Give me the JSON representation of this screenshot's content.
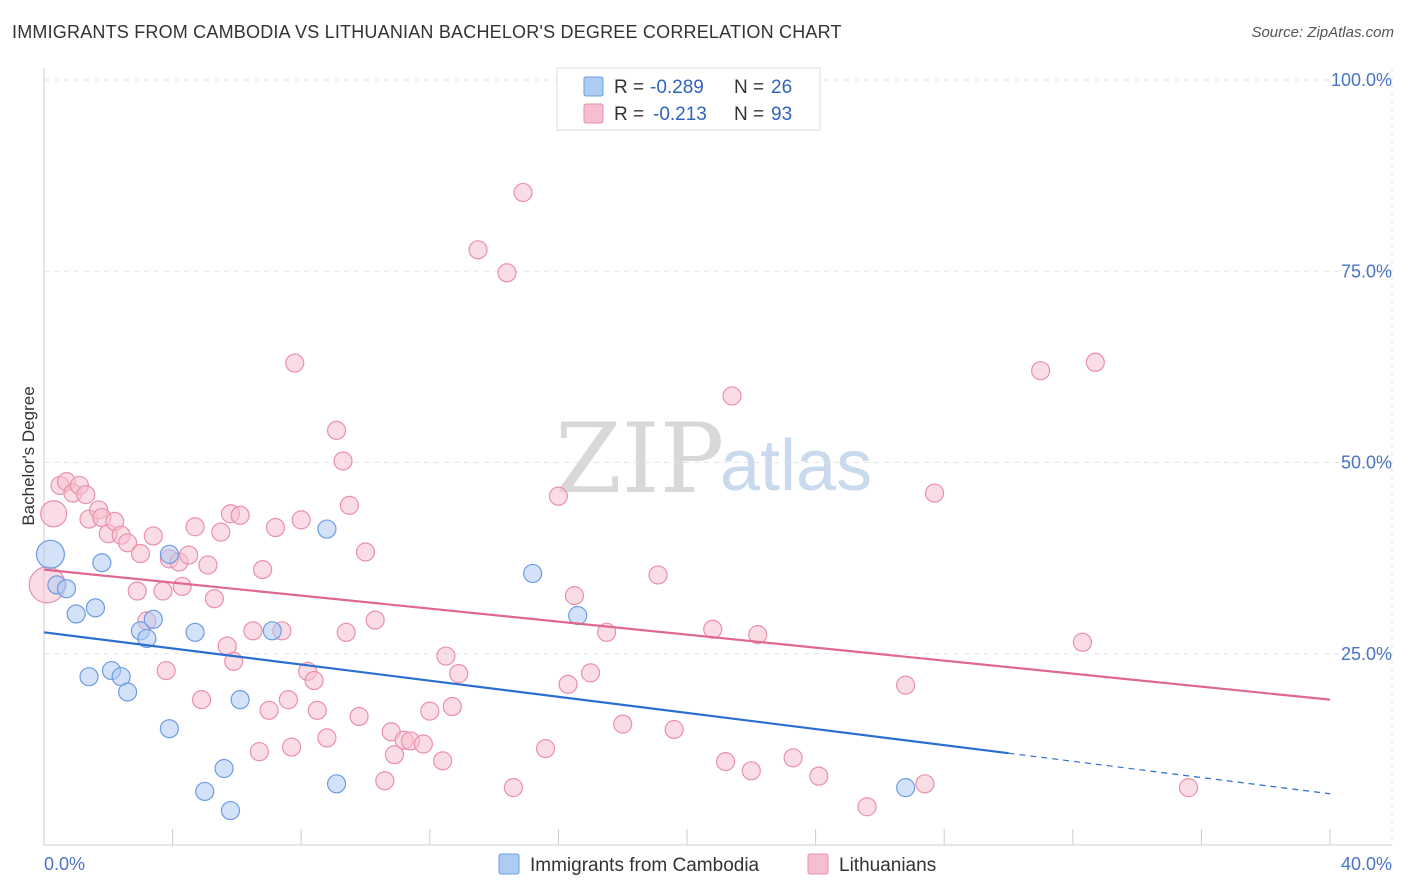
{
  "header": {
    "title": "IMMIGRANTS FROM CAMBODIA VS LITHUANIAN BACHELOR'S DEGREE CORRELATION CHART",
    "source": "Source: ZipAtlas.com"
  },
  "watermark": {
    "zip": "ZIP",
    "atlas": "atlas"
  },
  "legend_top": [
    {
      "r_label": "R = ",
      "r_value": "-0.289",
      "n_label": "N = ",
      "n_value": "26",
      "color": "#aecbf2"
    },
    {
      "r_label": "R = ",
      "r_value": "-0.213",
      "n_label": "N = ",
      "n_value": "93",
      "color": "#f6bfd0"
    }
  ],
  "chart_data": {
    "type": "scatter",
    "title": "IMMIGRANTS FROM CAMBODIA VS LITHUANIAN BACHELOR'S DEGREE CORRELATION CHART",
    "xlabel": "",
    "ylabel": "Bachelor's Degree",
    "xlim": [
      0,
      40
    ],
    "ylim": [
      0,
      100
    ],
    "x_tick_labels": [
      "0.0%",
      "40.0%"
    ],
    "y_ticks": [
      25,
      50,
      75,
      100
    ],
    "y_tick_labels": [
      "25.0%",
      "50.0%",
      "75.0%",
      "100.0%"
    ],
    "grid": true,
    "legend_placement": "bottom-center",
    "series": [
      {
        "name": "Immigrants from Cambodia",
        "color": "#aecbf2",
        "stroke": "#6d9ce0",
        "line_color": "#2a6fd0",
        "trend": {
          "x": [
            0,
            30,
            40
          ],
          "y": [
            27.8,
            12.0,
            6.7
          ],
          "solid_until": 30
        },
        "points": [
          [
            0.2,
            38.0,
            14
          ],
          [
            0.4,
            34.0,
            9
          ],
          [
            0.7,
            33.5,
            9
          ],
          [
            1.0,
            30.2,
            9
          ],
          [
            1.6,
            31.0,
            9
          ],
          [
            1.8,
            36.9,
            9
          ],
          [
            1.4,
            22.0,
            9
          ],
          [
            2.1,
            22.8,
            9
          ],
          [
            2.4,
            22.0,
            9
          ],
          [
            2.6,
            20.0,
            9
          ],
          [
            3.0,
            28.0,
            9
          ],
          [
            3.2,
            27.0,
            9
          ],
          [
            3.4,
            29.5,
            9
          ],
          [
            3.9,
            38.0,
            9
          ],
          [
            4.7,
            27.8,
            9
          ],
          [
            3.9,
            15.2,
            9
          ],
          [
            6.1,
            19.0,
            9
          ],
          [
            7.1,
            28.0,
            9
          ],
          [
            8.8,
            41.3,
            9
          ],
          [
            5.6,
            10.0,
            9
          ],
          [
            5.0,
            7.0,
            9
          ],
          [
            5.8,
            4.5,
            9
          ],
          [
            9.1,
            8.0,
            9
          ],
          [
            15.2,
            35.5,
            9
          ],
          [
            16.6,
            30.0,
            9
          ],
          [
            26.8,
            7.5,
            9
          ]
        ]
      },
      {
        "name": "Lithuanians",
        "color": "#f6bfd0",
        "stroke": "#ea90ab",
        "line_color": "#e0688f",
        "trend": {
          "x": [
            0,
            40
          ],
          "y": [
            36.0,
            19.0
          ],
          "solid_until": 40
        },
        "points": [
          [
            0.1,
            34.0,
            18
          ],
          [
            0.3,
            43.3,
            13
          ],
          [
            0.5,
            47.0,
            9
          ],
          [
            0.7,
            47.5,
            9
          ],
          [
            0.9,
            46.0,
            9
          ],
          [
            1.1,
            47.0,
            9
          ],
          [
            1.3,
            45.8,
            9
          ],
          [
            1.4,
            42.6,
            9
          ],
          [
            1.7,
            43.8,
            9
          ],
          [
            1.8,
            42.8,
            9
          ],
          [
            2.0,
            40.7,
            9
          ],
          [
            2.2,
            42.3,
            9
          ],
          [
            2.4,
            40.5,
            9
          ],
          [
            2.6,
            39.5,
            9
          ],
          [
            2.9,
            33.2,
            9
          ],
          [
            3.0,
            38.1,
            9
          ],
          [
            3.4,
            40.4,
            9
          ],
          [
            3.2,
            29.3,
            9
          ],
          [
            3.7,
            33.2,
            9
          ],
          [
            3.8,
            22.8,
            9
          ],
          [
            3.9,
            37.4,
            9
          ],
          [
            4.2,
            37.0,
            9
          ],
          [
            4.3,
            33.8,
            9
          ],
          [
            4.5,
            37.9,
            9
          ],
          [
            4.7,
            41.6,
            9
          ],
          [
            4.9,
            19.0,
            9
          ],
          [
            5.1,
            36.6,
            9
          ],
          [
            5.3,
            32.2,
            9
          ],
          [
            5.5,
            40.9,
            9
          ],
          [
            5.7,
            26.0,
            9
          ],
          [
            5.8,
            43.3,
            9
          ],
          [
            5.9,
            24.0,
            9
          ],
          [
            6.1,
            43.1,
            9
          ],
          [
            6.5,
            28.0,
            9
          ],
          [
            6.7,
            12.2,
            9
          ],
          [
            6.8,
            36.0,
            9
          ],
          [
            7.0,
            17.6,
            9
          ],
          [
            7.2,
            41.5,
            9
          ],
          [
            7.4,
            28.0,
            9
          ],
          [
            7.6,
            19.0,
            9
          ],
          [
            7.7,
            12.8,
            9
          ],
          [
            7.8,
            63.0,
            9
          ],
          [
            8.0,
            42.5,
            9
          ],
          [
            8.2,
            22.7,
            9
          ],
          [
            8.4,
            21.5,
            9
          ],
          [
            8.5,
            17.6,
            9
          ],
          [
            8.8,
            14.0,
            9
          ],
          [
            9.1,
            54.2,
            9
          ],
          [
            9.3,
            50.2,
            9
          ],
          [
            9.4,
            27.8,
            9
          ],
          [
            9.5,
            44.4,
            9
          ],
          [
            9.8,
            16.8,
            9
          ],
          [
            10.0,
            38.3,
            9
          ],
          [
            10.3,
            29.4,
            9
          ],
          [
            10.6,
            8.4,
            9
          ],
          [
            10.8,
            14.8,
            9
          ],
          [
            10.9,
            11.8,
            9
          ],
          [
            11.2,
            13.7,
            9
          ],
          [
            11.4,
            13.6,
            9
          ],
          [
            11.8,
            13.2,
            9
          ],
          [
            12.0,
            17.5,
            9
          ],
          [
            12.4,
            11.0,
            9
          ],
          [
            12.5,
            24.7,
            9
          ],
          [
            12.7,
            18.1,
            9
          ],
          [
            12.9,
            22.4,
            9
          ],
          [
            13.5,
            77.8,
            9
          ],
          [
            14.4,
            74.8,
            9
          ],
          [
            14.6,
            7.5,
            9
          ],
          [
            14.9,
            85.3,
            9
          ],
          [
            15.6,
            12.6,
            9
          ],
          [
            16.0,
            45.6,
            9
          ],
          [
            16.5,
            32.6,
            9
          ],
          [
            16.3,
            21.0,
            9
          ],
          [
            17.0,
            22.5,
            9
          ],
          [
            17.5,
            27.8,
            9
          ],
          [
            18.0,
            15.8,
            9
          ],
          [
            19.1,
            35.3,
            9
          ],
          [
            19.6,
            15.1,
            9
          ],
          [
            20.8,
            28.2,
            9
          ],
          [
            21.4,
            58.7,
            9
          ],
          [
            21.2,
            10.9,
            9
          ],
          [
            22.0,
            9.7,
            9
          ],
          [
            22.2,
            27.5,
            9
          ],
          [
            23.3,
            11.4,
            9
          ],
          [
            24.1,
            9.0,
            9
          ],
          [
            25.6,
            5.0,
            9
          ],
          [
            26.8,
            20.9,
            9
          ],
          [
            27.4,
            8.0,
            9
          ],
          [
            27.7,
            46.0,
            9
          ],
          [
            31.0,
            62.0,
            9
          ],
          [
            32.7,
            63.1,
            9
          ],
          [
            32.3,
            26.5,
            9
          ],
          [
            35.6,
            7.5,
            9
          ]
        ]
      }
    ]
  }
}
